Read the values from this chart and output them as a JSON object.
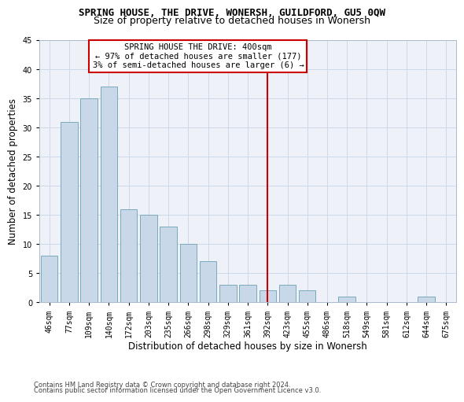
{
  "title": "SPRING HOUSE, THE DRIVE, WONERSH, GUILDFORD, GU5 0QW",
  "subtitle": "Size of property relative to detached houses in Wonersh",
  "xlabel": "Distribution of detached houses by size in Wonersh",
  "ylabel": "Number of detached properties",
  "footer_line1": "Contains HM Land Registry data © Crown copyright and database right 2024.",
  "footer_line2": "Contains public sector information licensed under the Open Government Licence v3.0.",
  "categories": [
    "46sqm",
    "77sqm",
    "109sqm",
    "140sqm",
    "172sqm",
    "203sqm",
    "235sqm",
    "266sqm",
    "298sqm",
    "329sqm",
    "361sqm",
    "392sqm",
    "423sqm",
    "455sqm",
    "486sqm",
    "518sqm",
    "549sqm",
    "581sqm",
    "612sqm",
    "644sqm",
    "675sqm"
  ],
  "values": [
    8,
    31,
    35,
    37,
    16,
    15,
    13,
    10,
    7,
    3,
    3,
    2,
    3,
    2,
    0,
    1,
    0,
    0,
    0,
    1,
    0
  ],
  "bar_color": "#c8d8e8",
  "bar_edge_color": "#7aaabb",
  "grid_color": "#ccd8e8",
  "background_color": "#eef2f8",
  "vline_x_index": 11,
  "vline_color": "#cc0000",
  "annotation_text": "SPRING HOUSE THE DRIVE: 400sqm\n← 97% of detached houses are smaller (177)\n3% of semi-detached houses are larger (6) →",
  "annotation_box_color": "#cc0000",
  "ylim": [
    0,
    45
  ],
  "yticks": [
    0,
    5,
    10,
    15,
    20,
    25,
    30,
    35,
    40,
    45
  ],
  "title_fontsize": 9,
  "subtitle_fontsize": 9,
  "label_fontsize": 8.5,
  "tick_fontsize": 7,
  "annotation_fontsize": 7.5,
  "footer_fontsize": 6
}
